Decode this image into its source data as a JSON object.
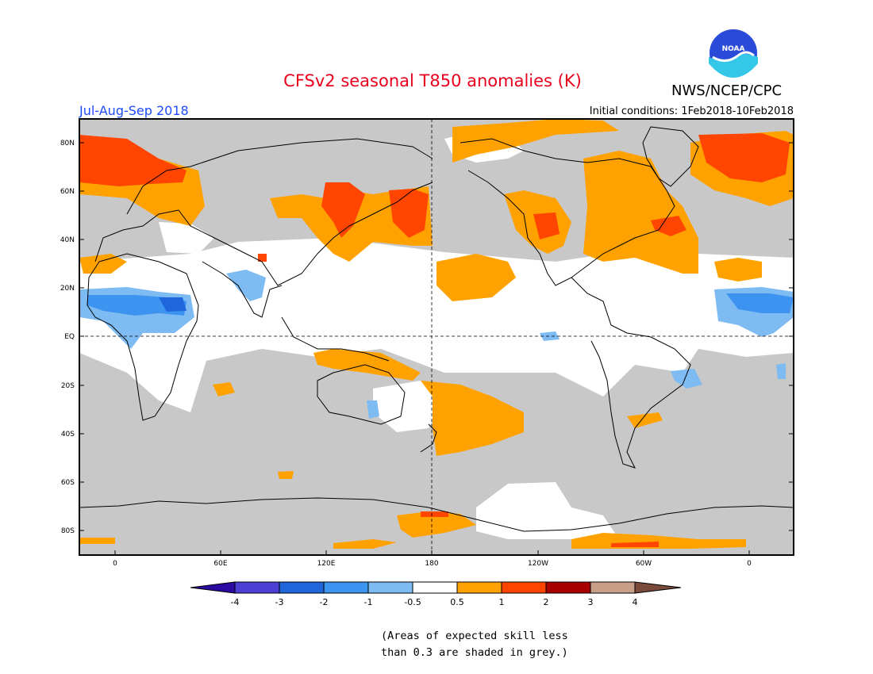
{
  "header": {
    "title": "CFSv2 seasonal T850 anomalies (K)",
    "agency": "NWS/NCEP/CPC",
    "season": "Jul-Aug-Sep 2018",
    "initial_conditions": "Initial conditions: 1Feb2018-10Feb2018",
    "logo_text": "NOAA"
  },
  "map": {
    "lat_labels": [
      "80N",
      "60N",
      "40N",
      "20N",
      "EQ",
      "20S",
      "40S",
      "60S",
      "80S"
    ],
    "lon_labels": [
      "0",
      "60E",
      "120E",
      "180",
      "120W",
      "60W",
      "0"
    ]
  },
  "colorbar": {
    "units": "K",
    "tick_labels": [
      "-4",
      "-3",
      "-2",
      "-1",
      "-0.5",
      "0.5",
      "1",
      "2",
      "3",
      "4"
    ],
    "colors": [
      "#2a0aa0",
      "#4b3fd6",
      "#1f66dd",
      "#3d93f0",
      "#7dbbf2",
      "#ffffff",
      "#ffa200",
      "#ff4500",
      "#a80000",
      "#c8a088",
      "#7a4a3a"
    ]
  },
  "shading_colors": {
    "low_skill_grey": "#c8c8c8",
    "near_normal": "#ffffff",
    "land_outline": "#000000"
  },
  "footnote": {
    "line1": "(Areas of expected skill less",
    "line2": "than 0.3 are shaded in grey.)"
  }
}
